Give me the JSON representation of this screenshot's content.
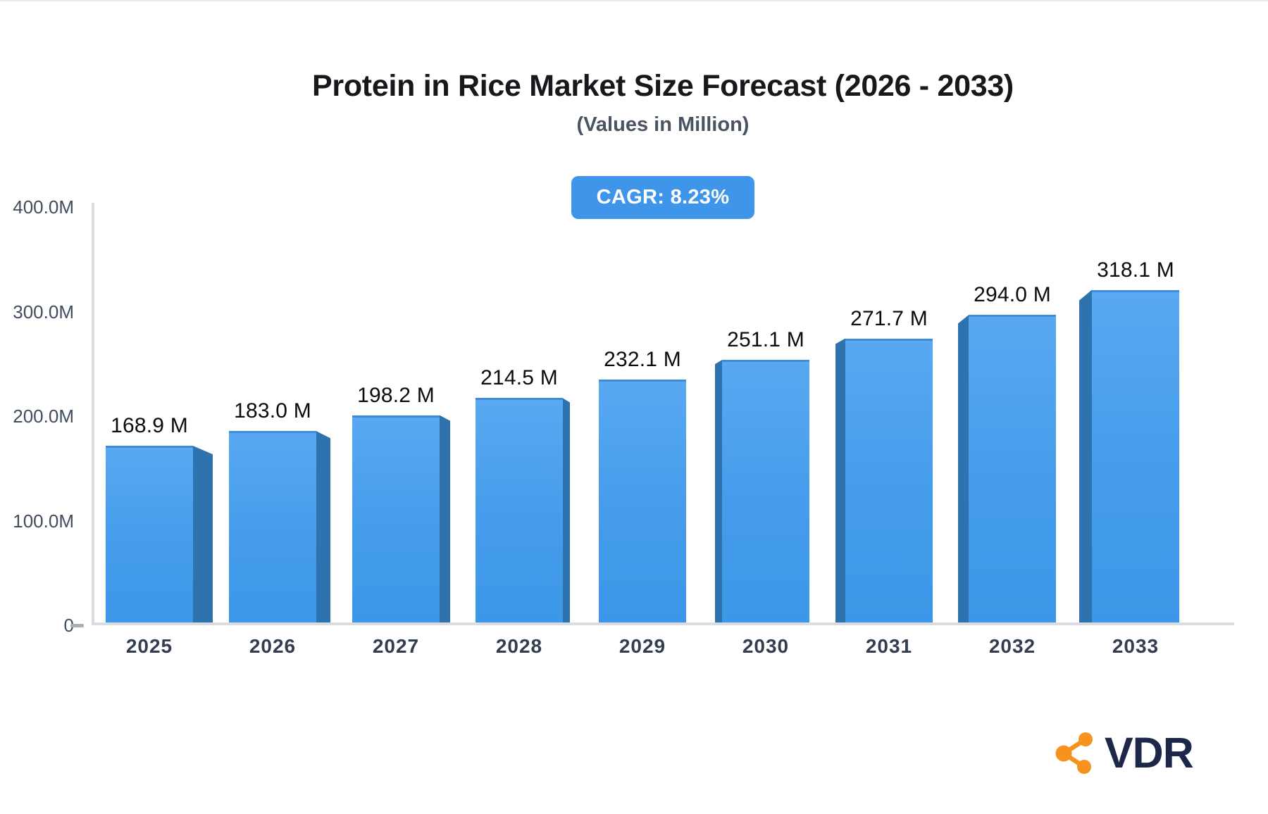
{
  "page": {
    "title": "Protein in Rice Market Size Forecast (2026 - 2033)",
    "subtitle": "(Values in Million)",
    "cagr_badge": "CAGR: 8.23%",
    "brand_name": "VDR"
  },
  "colors": {
    "bar_front_top": "#58a9f1",
    "bar_front_bottom": "#3c97e8",
    "bar_side": "#2e73ae",
    "badge_background": "#3e95ea",
    "axis_line": "#d9dce2",
    "title_text": "#17181c",
    "subtitle_text": "#4a5460",
    "axis_label_text": "#414d5e",
    "year_label_text": "#323e4f",
    "value_label_text": "#0b0b0c",
    "brand_navy": "#1d2749",
    "brand_orange": "#f6921e"
  },
  "chart_data": {
    "type": "bar",
    "title": "Protein in Rice Market Size Forecast (2026 - 2033)",
    "subtitle": "(Values in Million)",
    "annotation": "CAGR: 8.23%",
    "categories": [
      "2025",
      "2026",
      "2027",
      "2028",
      "2029",
      "2030",
      "2031",
      "2032",
      "2033"
    ],
    "values": [
      168.9,
      183.0,
      198.2,
      214.5,
      232.1,
      251.1,
      271.7,
      294.0,
      318.1
    ],
    "value_labels": [
      "168.9 M",
      "183.0 M",
      "198.2 M",
      "214.5 M",
      "232.1 M",
      "251.1 M",
      "271.7 M",
      "294.0 M",
      "318.1 M"
    ],
    "unit": "Million",
    "ylim": [
      0,
      400
    ],
    "y_ticks": [
      {
        "value": 400,
        "label": "400.0M"
      },
      {
        "value": 300,
        "label": "300.0M"
      },
      {
        "value": 200,
        "label": "200.0M"
      },
      {
        "value": 100,
        "label": "100.0M"
      },
      {
        "value": 0,
        "label": "0",
        "dash": true
      }
    ],
    "grid": "off",
    "legend": "none",
    "bar_style": "3d"
  }
}
